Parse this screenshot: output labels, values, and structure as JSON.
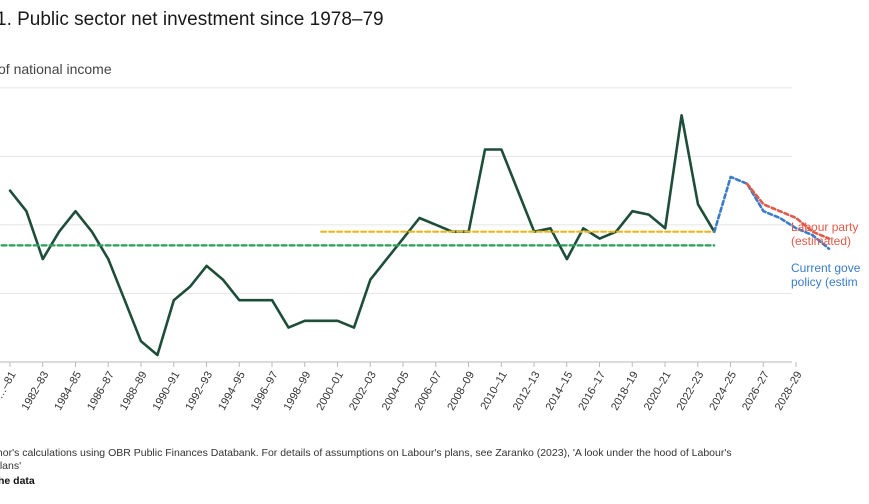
{
  "header": {
    "title": "1. Public sector net investment since 1978–79",
    "subtitle": "of national income"
  },
  "footer": {
    "source": "thor's calculations using OBR Public Finances Databank. For details of assumptions on Labour's plans, see Zaranko (2023), 'A look under the hood of Labour's",
    "source_cont": "plans'",
    "link": "he data"
  },
  "colors": {
    "historical": "#1e4d3a",
    "average": "#2a9d5a",
    "reference": "#e8b820",
    "labour": "#e05a4a",
    "government": "#3a7cc9"
  },
  "chart_data": {
    "type": "line",
    "title": "1. Public sector net investment since 1978–79",
    "ylabel": "of national income",
    "ylim": [
      -0.5,
      4.5
    ],
    "grid": true,
    "x_tick_labels": [
      "…–81",
      "1982–83",
      "1984–85",
      "1986–87",
      "1988–89",
      "1990–91",
      "1992–93",
      "1994–95",
      "1996–97",
      "1998–99",
      "2000–01",
      "2002–03",
      "2004–05",
      "2006–07",
      "2008–09",
      "2010–11",
      "2012–13",
      "2014–15",
      "2016–17",
      "2018–19",
      "2020–21",
      "2022–23",
      "2024–25",
      "2026–27",
      "2028–29"
    ],
    "series": [
      {
        "key": "historical",
        "style": "solid",
        "x": [
          1979,
          1980,
          1981,
          1982,
          1983,
          1984,
          1985,
          1986,
          1987,
          1988,
          1989,
          1990,
          1991,
          1992,
          1993,
          1994,
          1995,
          1996,
          1997,
          1998,
          1999,
          2000,
          2001,
          2002,
          2003,
          2004,
          2005,
          2006,
          2007,
          2008,
          2009,
          2010,
          2011,
          2012,
          2013,
          2014,
          2015,
          2016,
          2017,
          2018,
          2019,
          2020,
          2021,
          2022
        ],
        "values": [
          2.4,
          2.1,
          1.4,
          1.8,
          2.1,
          1.8,
          1.4,
          0.8,
          0.2,
          0.0,
          0.8,
          1.0,
          1.3,
          1.1,
          0.8,
          0.8,
          0.8,
          0.4,
          0.5,
          0.5,
          0.5,
          0.4,
          1.1,
          1.4,
          1.7,
          2.0,
          1.9,
          1.8,
          1.8,
          3.0,
          3.0,
          2.4,
          1.8,
          1.85,
          1.4,
          1.85,
          1.7,
          1.8,
          2.1,
          2.05,
          1.85,
          3.5,
          2.2,
          1.8
        ]
      },
      {
        "key": "average",
        "style": "dashed",
        "x": [
          1978,
          2022
        ],
        "values": [
          1.6,
          1.6
        ]
      },
      {
        "key": "reference",
        "style": "dashed",
        "x": [
          1998,
          2022
        ],
        "values": [
          1.8,
          1.8
        ]
      },
      {
        "key": "government",
        "name": "Current government policy (estimated)",
        "label_lines": [
          "Current gove",
          "policy (estim"
        ],
        "style": "dotted",
        "x": [
          2022,
          2023,
          2024,
          2025,
          2026,
          2027,
          2028,
          2029
        ],
        "values": [
          1.8,
          2.6,
          2.5,
          2.1,
          2.0,
          1.85,
          1.75,
          1.55
        ]
      },
      {
        "key": "labour",
        "name": "Labour party plans (estimated)",
        "label_lines": [
          "Labour party",
          "(estimated)"
        ],
        "style": "dotted",
        "x": [
          2024,
          2025,
          2026,
          2027,
          2028,
          2029
        ],
        "values": [
          2.5,
          2.2,
          2.1,
          2.0,
          1.8,
          1.7
        ]
      }
    ]
  }
}
